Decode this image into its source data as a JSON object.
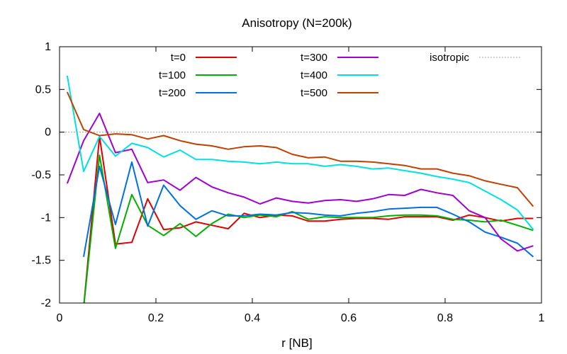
{
  "chart_data": {
    "type": "line",
    "title": "Anisotropy (N=200k)",
    "xlabel": "r [NB]",
    "ylabel": "",
    "xlim": [
      0,
      1
    ],
    "ylim": [
      -2,
      1
    ],
    "xticks": [
      "0",
      "0.2",
      "0.4",
      "0.6",
      "0.8",
      "1"
    ],
    "yticks": [
      "1",
      "0.5",
      "0",
      "-0.5",
      "-1",
      "-1.5",
      "-2"
    ],
    "grid": false,
    "legend_placement": "top",
    "reference_line": {
      "name": "isotropic",
      "y": 0,
      "color": "#a0a0a0",
      "style": "dotted"
    },
    "x": [
      0.016,
      0.05,
      0.083,
      0.116,
      0.15,
      0.183,
      0.216,
      0.25,
      0.283,
      0.316,
      0.35,
      0.383,
      0.416,
      0.45,
      0.483,
      0.516,
      0.55,
      0.583,
      0.616,
      0.65,
      0.683,
      0.716,
      0.75,
      0.783,
      0.816,
      0.85,
      0.883,
      0.916,
      0.95,
      0.983
    ],
    "series": [
      {
        "name": "t=0",
        "color": "#e00000",
        "values": [
          null,
          -2.05,
          -0.05,
          -1.31,
          -1.29,
          -0.78,
          -1.14,
          -1.12,
          -1.05,
          -1.09,
          -1.13,
          -0.95,
          -1.0,
          -0.97,
          -0.98,
          -1.04,
          -1.04,
          -1.02,
          -1.01,
          -1.01,
          -1.02,
          -0.99,
          -0.99,
          -0.99,
          -1.03,
          -0.97,
          -1.0,
          -1.04,
          -1.01,
          -1.01
        ]
      },
      {
        "name": "t=100",
        "color": "#00b000",
        "values": [
          null,
          -2.05,
          -0.27,
          -1.36,
          -0.73,
          -1.09,
          -1.21,
          -1.07,
          -1.22,
          -1.07,
          -0.96,
          -1.0,
          -0.97,
          -0.99,
          -0.93,
          -1.02,
          -0.99,
          -1.0,
          -1.0,
          -1.0,
          -0.98,
          -0.97,
          -0.97,
          -0.98,
          -1.02,
          -1.03,
          -1.05,
          -1.03,
          -1.09,
          -1.15
        ]
      },
      {
        "name": "t=200",
        "color": "#0070e0",
        "values": [
          null,
          -1.46,
          -0.4,
          -1.08,
          -0.35,
          -1.1,
          -0.62,
          -0.86,
          -1.02,
          -0.92,
          -0.98,
          -0.98,
          -0.96,
          -0.97,
          -0.94,
          -0.95,
          -0.97,
          -0.98,
          -0.95,
          -0.93,
          -0.9,
          -0.89,
          -0.88,
          -0.88,
          -0.96,
          -1.05,
          -1.17,
          -1.23,
          -1.3,
          -1.46
        ]
      },
      {
        "name": "t=300",
        "color": "#a000d0",
        "values": [
          -0.6,
          -0.1,
          0.22,
          -0.24,
          -0.2,
          -0.59,
          -0.56,
          -0.68,
          -0.53,
          -0.64,
          -0.71,
          -0.76,
          -0.84,
          -0.77,
          -0.81,
          -0.83,
          -0.8,
          -0.79,
          -0.81,
          -0.78,
          -0.73,
          -0.74,
          -0.67,
          -0.71,
          -0.74,
          -0.92,
          -1.0,
          -1.25,
          -1.39,
          -1.33
        ]
      },
      {
        "name": "t=400",
        "color": "#00e0e0",
        "values": [
          0.66,
          -0.46,
          -0.05,
          -0.28,
          -0.13,
          -0.18,
          -0.29,
          -0.21,
          -0.32,
          -0.32,
          -0.34,
          -0.35,
          -0.37,
          -0.35,
          -0.37,
          -0.37,
          -0.4,
          -0.38,
          -0.4,
          -0.43,
          -0.42,
          -0.45,
          -0.48,
          -0.52,
          -0.55,
          -0.59,
          -0.69,
          -0.79,
          -0.91,
          -1.14
        ]
      },
      {
        "name": "t=500",
        "color": "#c04000",
        "values": [
          0.47,
          0.03,
          -0.04,
          -0.02,
          -0.03,
          -0.08,
          -0.04,
          -0.1,
          -0.14,
          -0.16,
          -0.2,
          -0.17,
          -0.16,
          -0.18,
          -0.26,
          -0.3,
          -0.29,
          -0.34,
          -0.34,
          -0.35,
          -0.37,
          -0.39,
          -0.43,
          -0.43,
          -0.48,
          -0.51,
          -0.57,
          -0.61,
          -0.65,
          -0.87
        ]
      }
    ]
  }
}
